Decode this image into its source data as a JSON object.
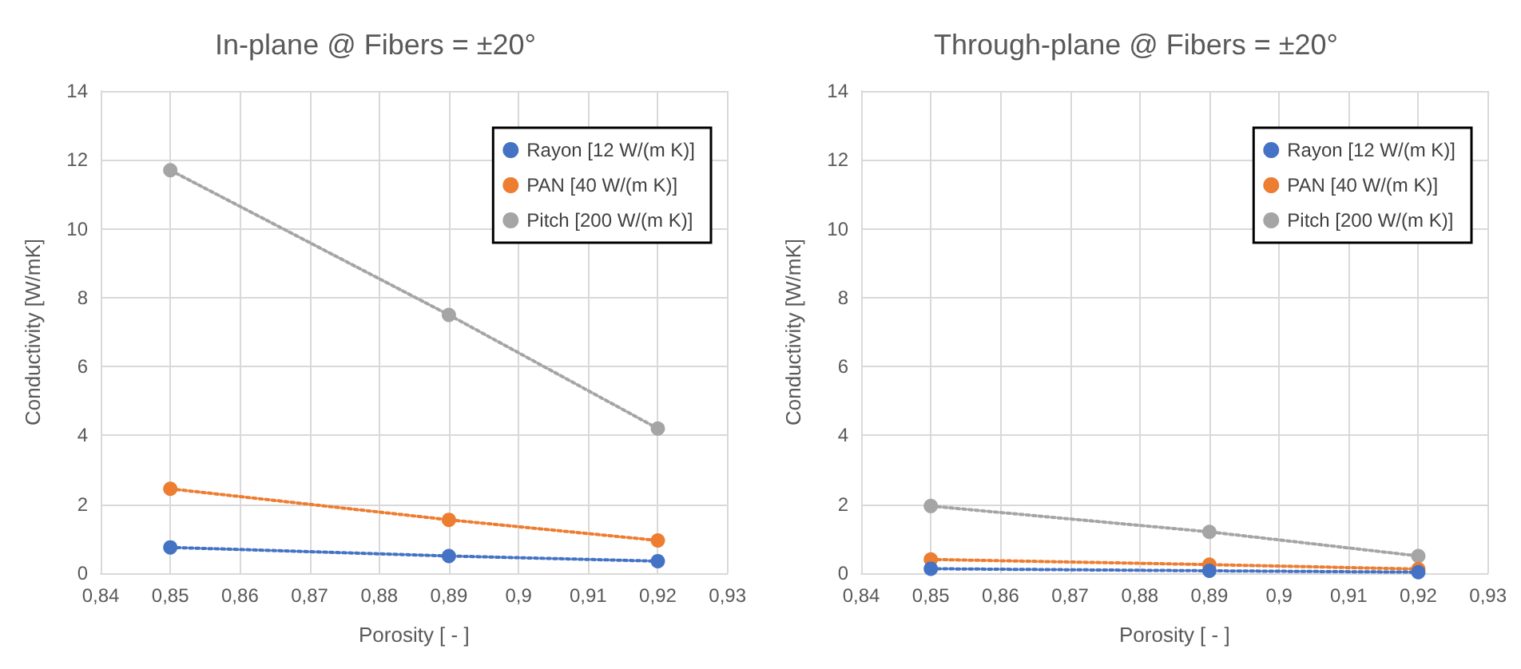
{
  "chart_data": [
    {
      "type": "line",
      "title": "In-plane @ Fibers = ±20°",
      "xlabel": "Porosity [ - ]",
      "ylabel": "Conductivity [W/mK]",
      "x": [
        0.85,
        0.89,
        0.92
      ],
      "series": [
        {
          "name": "Rayon [12 W/(m K)]",
          "color": "#4472c4",
          "values": [
            0.75,
            0.5,
            0.35
          ]
        },
        {
          "name": "PAN [40 W/(m K)]",
          "color": "#ed7d31",
          "values": [
            2.45,
            1.55,
            0.95
          ]
        },
        {
          "name": "Pitch [200 W/(m K)]",
          "color": "#a5a5a5",
          "values": [
            11.7,
            7.5,
            4.2
          ]
        }
      ],
      "xlim": [
        0.84,
        0.93
      ],
      "xticks": [
        {
          "value": 0.84,
          "label": "0,84"
        },
        {
          "value": 0.85,
          "label": "0,85"
        },
        {
          "value": 0.86,
          "label": "0,86"
        },
        {
          "value": 0.87,
          "label": "0,87"
        },
        {
          "value": 0.88,
          "label": "0,88"
        },
        {
          "value": 0.89,
          "label": "0,89"
        },
        {
          "value": 0.9,
          "label": "0,9"
        },
        {
          "value": 0.91,
          "label": "0,91"
        },
        {
          "value": 0.92,
          "label": "0,92"
        },
        {
          "value": 0.93,
          "label": "0,93"
        }
      ],
      "ylim": [
        0,
        14
      ],
      "yticks": [
        0,
        2,
        4,
        6,
        8,
        10,
        12,
        14
      ],
      "grid": true,
      "legend": "top right",
      "marker": "circle",
      "line_style": "dotted"
    },
    {
      "type": "line",
      "title": "Through-plane @ Fibers = ±20°",
      "xlabel": "Porosity [ - ]",
      "ylabel": "Conductivity [W/mK]",
      "x": [
        0.85,
        0.89,
        0.92
      ],
      "series": [
        {
          "name": "Rayon [12 W/(m K)]",
          "color": "#4472c4",
          "values": [
            0.13,
            0.07,
            0.03
          ]
        },
        {
          "name": "PAN [40 W/(m K)]",
          "color": "#ed7d31",
          "values": [
            0.4,
            0.25,
            0.12
          ]
        },
        {
          "name": "Pitch [200 W/(m K)]",
          "color": "#a5a5a5",
          "values": [
            1.95,
            1.2,
            0.5
          ]
        }
      ],
      "xlim": [
        0.84,
        0.93
      ],
      "xticks": [
        {
          "value": 0.84,
          "label": "0,84"
        },
        {
          "value": 0.85,
          "label": "0,85"
        },
        {
          "value": 0.86,
          "label": "0,86"
        },
        {
          "value": 0.87,
          "label": "0,87"
        },
        {
          "value": 0.88,
          "label": "0,88"
        },
        {
          "value": 0.89,
          "label": "0,89"
        },
        {
          "value": 0.9,
          "label": "0,9"
        },
        {
          "value": 0.91,
          "label": "0,91"
        },
        {
          "value": 0.92,
          "label": "0,92"
        },
        {
          "value": 0.93,
          "label": "0,93"
        }
      ],
      "ylim": [
        0,
        14
      ],
      "yticks": [
        0,
        2,
        4,
        6,
        8,
        10,
        12,
        14
      ],
      "grid": true,
      "legend": "top right",
      "marker": "circle",
      "line_style": "dotted"
    }
  ]
}
